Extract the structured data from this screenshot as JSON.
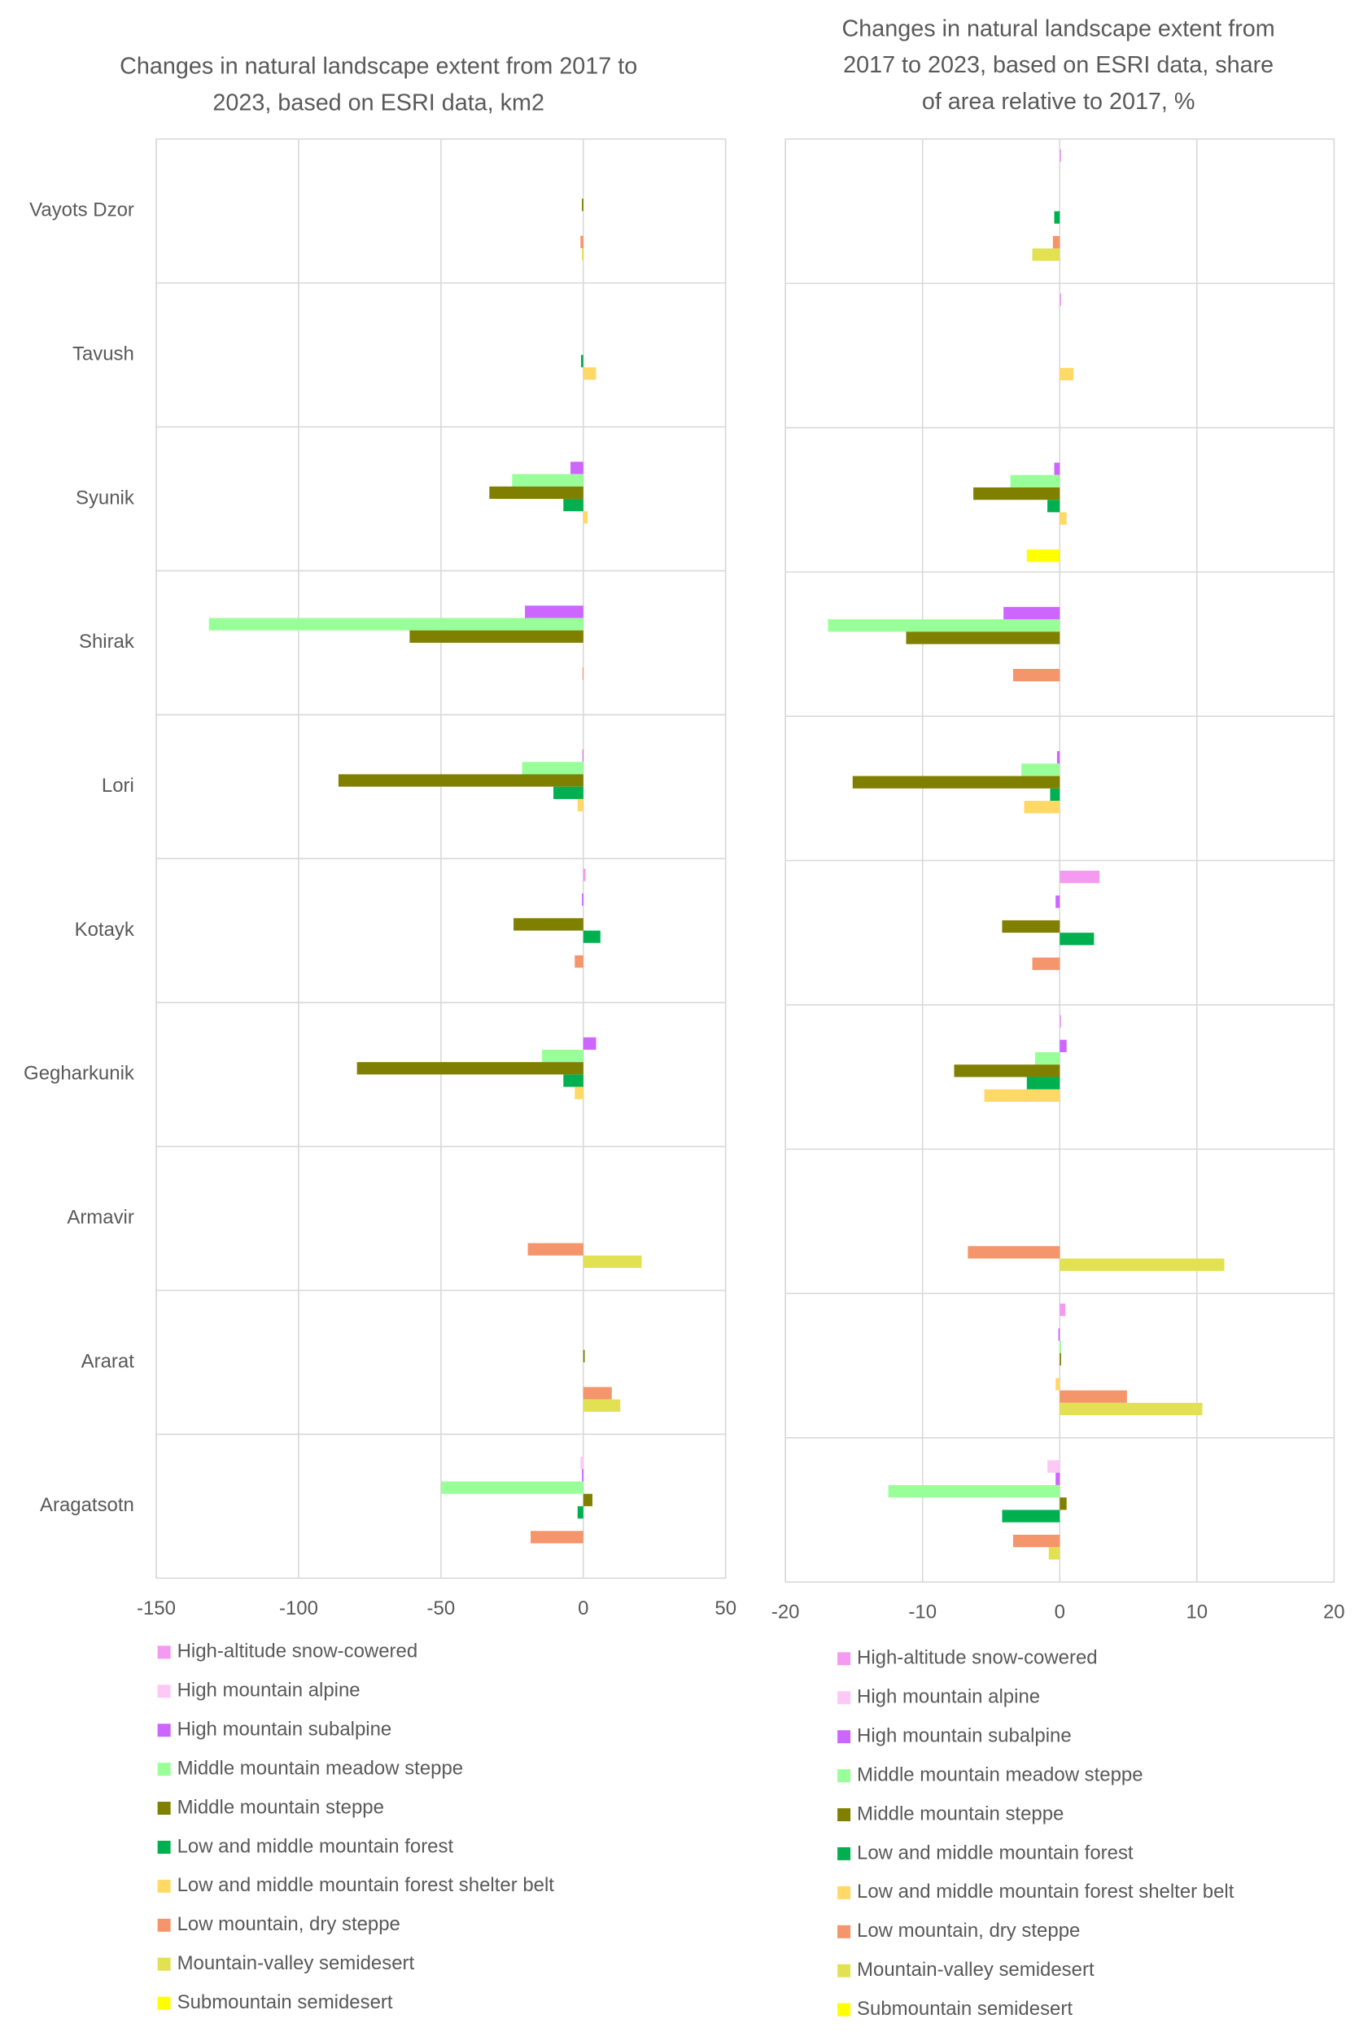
{
  "chart_data": [
    {
      "type": "bar",
      "orientation": "horizontal",
      "title": [
        "Changes in natural landscape extent from 2017 to",
        "2023, based on ESRI data, km2"
      ],
      "categories": [
        "Vayots Dzor",
        "Tavush",
        "Syunik",
        "Shirak",
        "Lori",
        "Kotayk",
        "Gegharkunik",
        "Armavir",
        "Ararat",
        "Aragatsotn"
      ],
      "xlim": [
        -150,
        50
      ],
      "xticks": [
        -150,
        -100,
        -50,
        0,
        50
      ],
      "grid": true,
      "legend": "bottom",
      "series": [
        {
          "name": "High-altitude snow-cowered",
          "color": "#f49af0",
          "values": [
            0,
            0,
            0,
            0,
            0,
            0.8,
            0,
            0,
            0,
            0
          ]
        },
        {
          "name": "High mountain alpine",
          "color": "#fcc9f7",
          "values": [
            0,
            0,
            0,
            0,
            0,
            0,
            0,
            0,
            0,
            -1
          ]
        },
        {
          "name": "High mountain subalpine",
          "color": "#cc66ff",
          "values": [
            0,
            0,
            -4.5,
            -20.5,
            -0.3,
            -0.5,
            4.5,
            0,
            0,
            -0.5
          ]
        },
        {
          "name": "Middle mountain meadow steppe",
          "color": "#99ff99",
          "values": [
            0,
            0,
            -25,
            -131.5,
            -21.5,
            0,
            -14.5,
            0,
            0,
            -50
          ]
        },
        {
          "name": "Middle mountain steppe",
          "color": "#808000",
          "values": [
            -0.5,
            0,
            -33,
            -61,
            -86,
            -24.5,
            -79.5,
            0,
            0.5,
            3.2
          ]
        },
        {
          "name": "Low and middle mountain forest",
          "color": "#00b050",
          "values": [
            0,
            -0.8,
            -7,
            0,
            -10.5,
            6,
            -7,
            0,
            0,
            -2
          ]
        },
        {
          "name": "Low and middle mountain forest shelter belt",
          "color": "#ffd966",
          "values": [
            0,
            4.5,
            1.5,
            0,
            -2,
            0,
            -3,
            0,
            0,
            0
          ]
        },
        {
          "name": "Low mountain, dry steppe",
          "color": "#f4956b",
          "values": [
            -1,
            0,
            0,
            -0.3,
            0,
            -3,
            0,
            -19.5,
            10,
            -18.5
          ]
        },
        {
          "name": "Mountain-valley semidesert",
          "color": "#e1e152",
          "values": [
            -0.5,
            0,
            0,
            0,
            0,
            0,
            0,
            20.5,
            13,
            0
          ]
        },
        {
          "name": "Submountain semidesert",
          "color": "#ffff00",
          "values": [
            0,
            0,
            0,
            0,
            0,
            0,
            0,
            0,
            0,
            0
          ]
        }
      ]
    },
    {
      "type": "bar",
      "orientation": "horizontal",
      "title": [
        "Changes in natural landscape extent from",
        "2017 to 2023, based on ESRI data, share",
        "of area relative to 2017, %"
      ],
      "xlim": [
        -20,
        20
      ],
      "xticks": [
        -20,
        -10,
        0,
        10,
        20
      ],
      "grid": true,
      "legend": "bottom",
      "series": [
        {
          "name": "High-altitude snow-cowered",
          "color": "#f49af0",
          "values": [
            0.1,
            0.1,
            0,
            0,
            0,
            2.9,
            0.1,
            0,
            0.4,
            0
          ]
        },
        {
          "name": "High mountain alpine",
          "color": "#fcc9f7",
          "values": [
            0,
            0,
            0,
            0,
            0,
            0,
            0,
            0,
            0,
            -0.9
          ]
        },
        {
          "name": "High mountain subalpine",
          "color": "#cc66ff",
          "values": [
            0,
            0,
            -0.4,
            -4.1,
            -0.2,
            -0.3,
            0.5,
            0,
            -0.1,
            -0.3
          ]
        },
        {
          "name": "Middle mountain meadow steppe",
          "color": "#99ff99",
          "values": [
            0,
            0,
            -3.6,
            -16.9,
            -2.8,
            0,
            -1.8,
            0,
            0.1,
            -12.5
          ]
        },
        {
          "name": "Middle mountain steppe",
          "color": "#808000",
          "values": [
            0,
            0,
            -6.3,
            -11.2,
            -15.1,
            -4.2,
            -7.7,
            0,
            0.1,
            0.5
          ]
        },
        {
          "name": "Low and middle mountain forest",
          "color": "#00b050",
          "values": [
            -0.4,
            0,
            -0.9,
            0,
            -0.7,
            2.5,
            -2.4,
            0,
            0,
            -4.2
          ]
        },
        {
          "name": "Low and middle mountain forest shelter belt",
          "color": "#ffd966",
          "values": [
            0,
            1,
            0.5,
            0,
            -2.6,
            0,
            -5.5,
            0,
            -0.3,
            0
          ]
        },
        {
          "name": "Low mountain, dry steppe",
          "color": "#f4956b",
          "values": [
            -0.5,
            0,
            0,
            -3.4,
            0,
            -2,
            0,
            -6.7,
            4.9,
            -3.4
          ]
        },
        {
          "name": "Mountain-valley semidesert",
          "color": "#e1e152",
          "values": [
            -2,
            0,
            0,
            0,
            0,
            0,
            0,
            12,
            10.4,
            -0.8
          ]
        },
        {
          "name": "Submountain semidesert",
          "color": "#ffff00",
          "values": [
            0,
            0,
            -2.4,
            0,
            0,
            0,
            0,
            0,
            0,
            0
          ]
        }
      ]
    }
  ]
}
